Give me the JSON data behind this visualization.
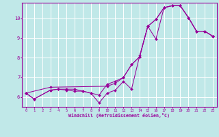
{
  "title": "",
  "xlabel": "Windchill (Refroidissement éolien,°C)",
  "bg_color": "#c0e8e8",
  "line_color": "#990099",
  "grid_color": "#ffffff",
  "xlim": [
    -0.5,
    23.5
  ],
  "ylim": [
    5.5,
    10.8
  ],
  "xticks": [
    0,
    1,
    2,
    3,
    4,
    5,
    6,
    7,
    8,
    9,
    10,
    11,
    12,
    13,
    14,
    15,
    16,
    17,
    18,
    19,
    20,
    21,
    22,
    23
  ],
  "yticks": [
    6,
    7,
    8,
    9,
    10
  ],
  "series": [
    {
      "x": [
        0,
        1,
        3,
        4,
        5,
        6,
        7,
        8,
        9,
        10,
        11,
        12,
        13,
        14,
        15,
        16,
        17,
        18,
        19,
        20,
        21,
        22,
        23
      ],
      "y": [
        6.2,
        5.9,
        6.35,
        6.4,
        6.4,
        6.4,
        6.3,
        6.2,
        6.1,
        6.65,
        6.8,
        7.0,
        7.65,
        8.05,
        9.6,
        9.95,
        10.55,
        10.65,
        10.65,
        10.05,
        9.35,
        9.35,
        9.1
      ]
    },
    {
      "x": [
        0,
        1,
        3,
        4,
        5,
        6,
        7,
        8,
        9,
        10,
        11,
        12,
        13,
        14,
        15,
        16,
        17,
        18,
        19,
        20,
        21,
        22,
        23
      ],
      "y": [
        6.2,
        5.9,
        6.35,
        6.4,
        6.35,
        6.3,
        6.3,
        6.2,
        5.7,
        6.2,
        6.35,
        6.8,
        6.4,
        8.1,
        9.6,
        9.95,
        10.55,
        10.65,
        10.65,
        10.05,
        9.35,
        9.35,
        9.1
      ]
    },
    {
      "x": [
        0,
        3,
        10,
        11,
        12,
        13,
        14,
        15,
        16,
        17,
        18,
        19,
        20,
        21,
        22,
        23
      ],
      "y": [
        6.2,
        6.5,
        6.55,
        6.7,
        7.0,
        7.65,
        8.05,
        9.6,
        8.95,
        10.55,
        10.65,
        10.65,
        10.05,
        9.35,
        9.35,
        9.1
      ]
    }
  ]
}
